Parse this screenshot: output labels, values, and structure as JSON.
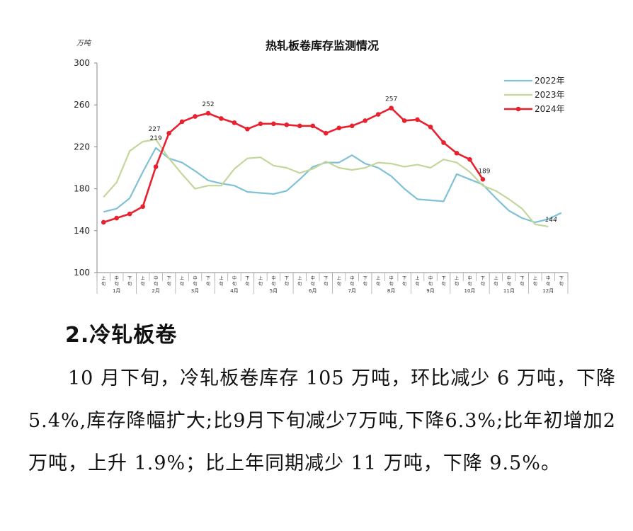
{
  "chart_data": {
    "type": "line",
    "title": "热轧板卷库存监测情况",
    "ylabel": "万吨",
    "ylim": [
      100,
      300
    ],
    "yticks": [
      100,
      140,
      180,
      220,
      260,
      300
    ],
    "legend_position": "top-right",
    "x_sub": [
      "上旬",
      "中旬",
      "下旬",
      "上旬",
      "中旬",
      "下旬",
      "上旬",
      "中旬",
      "下旬",
      "上旬",
      "中旬",
      "下旬",
      "上旬",
      "中旬",
      "下旬",
      "上旬",
      "中旬",
      "下旬",
      "上旬",
      "中旬",
      "下旬",
      "上旬",
      "中旬",
      "下旬",
      "上旬",
      "中旬",
      "下旬",
      "上旬",
      "中旬",
      "下旬",
      "上旬",
      "中旬",
      "下旬",
      "上旬",
      "中旬",
      "下旬"
    ],
    "months": [
      "1月",
      "2月",
      "3月",
      "4月",
      "5月",
      "6月",
      "7月",
      "8月",
      "9月",
      "10月",
      "11月",
      "12月"
    ],
    "series": [
      {
        "name": "2022年",
        "color": "#7fc1d6",
        "marker": false,
        "values": [
          158,
          161,
          171,
          196,
          219,
          209,
          205,
          197,
          188,
          185,
          183,
          177,
          176,
          175,
          178,
          189,
          201,
          205,
          205,
          212,
          204,
          200,
          192,
          180,
          170,
          169,
          168,
          194,
          189,
          184,
          171,
          159,
          152,
          148,
          151,
          157
        ]
      },
      {
        "name": "2023年",
        "color": "#c3d69b",
        "marker": false,
        "values": [
          172,
          186,
          216,
          225,
          227,
          209,
          194,
          180,
          183,
          183,
          199,
          209,
          210,
          202,
          200,
          195,
          199,
          206,
          200,
          198,
          200,
          205,
          204,
          201,
          203,
          200,
          208,
          205,
          196,
          183,
          178,
          170,
          161,
          146,
          144,
          null
        ]
      },
      {
        "name": "2024年",
        "color": "#e8212e",
        "marker": true,
        "values": [
          148,
          152,
          156,
          163,
          201,
          233,
          244,
          249,
          252,
          247,
          243,
          237,
          242,
          242,
          241,
          240,
          240,
          233,
          238,
          240,
          245,
          251,
          257,
          245,
          246,
          239,
          224,
          214,
          208,
          189,
          null,
          null,
          null,
          null,
          null,
          null
        ]
      }
    ],
    "annotations": [
      {
        "text": "227",
        "series": 1,
        "index": 4
      },
      {
        "text": "219",
        "series": 0,
        "index": 4
      },
      {
        "text": "252",
        "series": 2,
        "index": 8
      },
      {
        "text": "257",
        "series": 2,
        "index": 22
      },
      {
        "text": "189",
        "series": 2,
        "index": 29
      },
      {
        "text": "144",
        "series": 1,
        "index": 34
      }
    ]
  },
  "document": {
    "heading": "2.冷轧板卷",
    "paragraph": "10 月下旬，冷轧板卷库存 105 万吨，环比减少 6 万吨，下降5.4%,库存降幅扩大;比9月下旬减少7万吨,下降6.3%;比年初增加2万吨，上升 1.9%；比上年同期减少 11 万吨，下降 9.5%。"
  }
}
